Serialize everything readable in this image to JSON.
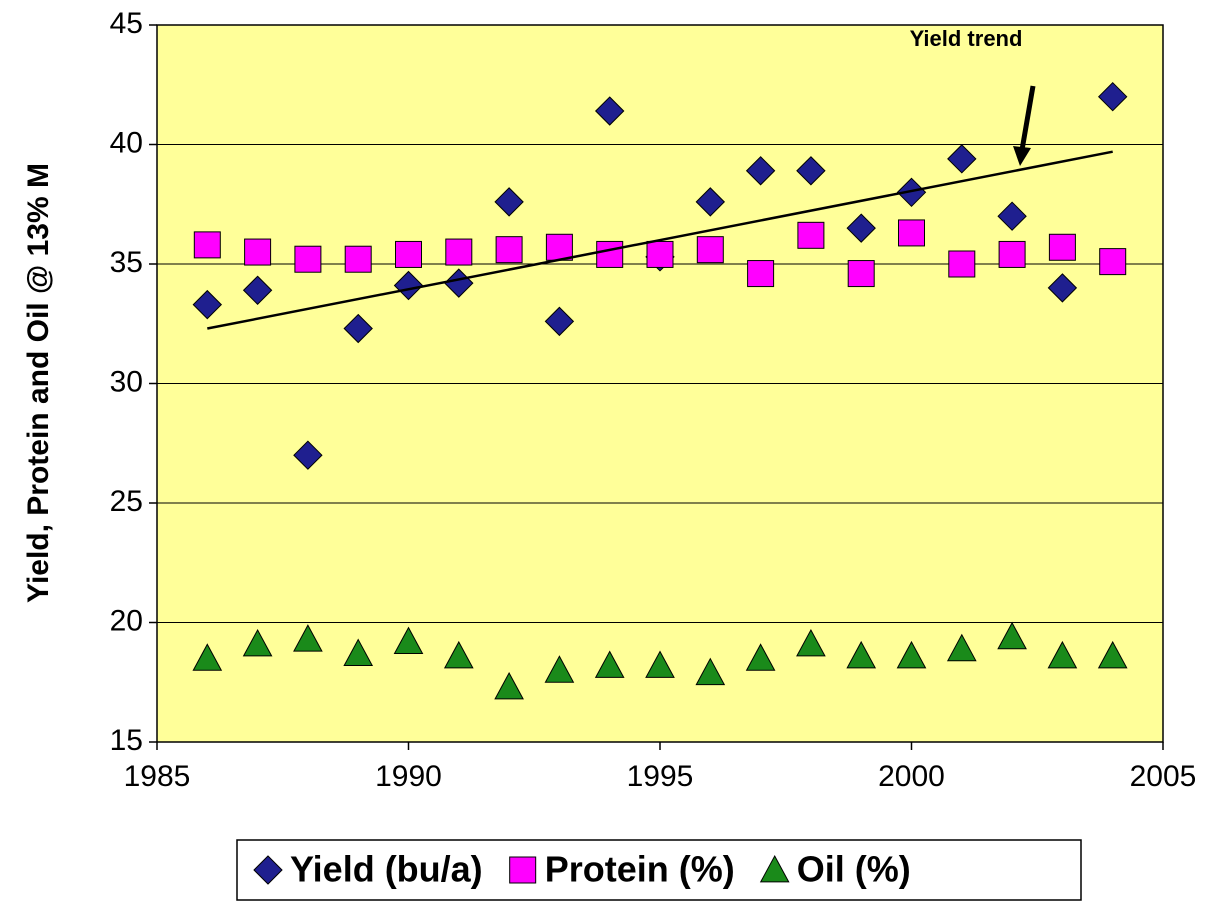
{
  "chart_data": {
    "type": "scatter",
    "y_label": "Yield, Protein and Oil @ 13% M",
    "x": [
      1986,
      1987,
      1988,
      1989,
      1990,
      1991,
      1992,
      1993,
      1994,
      1995,
      1996,
      1997,
      1998,
      1999,
      2000,
      2001,
      2002,
      2003,
      2004
    ],
    "series": [
      {
        "name": "Yield (bu/a)",
        "color": "#1f1f8f",
        "marker": "diamond",
        "values": [
          33.3,
          33.9,
          27.0,
          32.3,
          34.1,
          34.2,
          37.6,
          32.6,
          41.4,
          35.3,
          37.6,
          38.9,
          38.9,
          36.5,
          38.0,
          39.4,
          37.0,
          34.0,
          42.0
        ]
      },
      {
        "name": "Protein (%)",
        "color": "#ff00ff",
        "marker": "square",
        "values": [
          35.8,
          35.5,
          35.2,
          35.2,
          35.4,
          35.5,
          35.6,
          35.7,
          35.4,
          35.4,
          35.6,
          34.6,
          36.2,
          34.6,
          36.3,
          35.0,
          35.4,
          35.7,
          35.1
        ]
      },
      {
        "name": "Oil (%)",
        "color": "#1a8a1a",
        "marker": "triangle",
        "values": [
          18.5,
          19.1,
          19.3,
          18.7,
          19.2,
          18.6,
          17.3,
          18.0,
          18.2,
          18.2,
          17.9,
          18.5,
          19.1,
          18.6,
          18.6,
          18.9,
          19.4,
          18.6,
          18.6
        ]
      }
    ],
    "trend": {
      "label": "Yield trend",
      "x": [
        1986,
        2004
      ],
      "values": [
        32.3,
        39.7
      ],
      "color": "#000000"
    },
    "xlim": [
      1985,
      2005
    ],
    "xticks": [
      1985,
      1990,
      1995,
      2000,
      2005
    ],
    "ylim": [
      15,
      45
    ],
    "yticks": [
      15,
      20,
      25,
      30,
      35,
      40,
      45
    ],
    "grid": true,
    "plot_background": "#ffff99",
    "legend": "bottom"
  }
}
